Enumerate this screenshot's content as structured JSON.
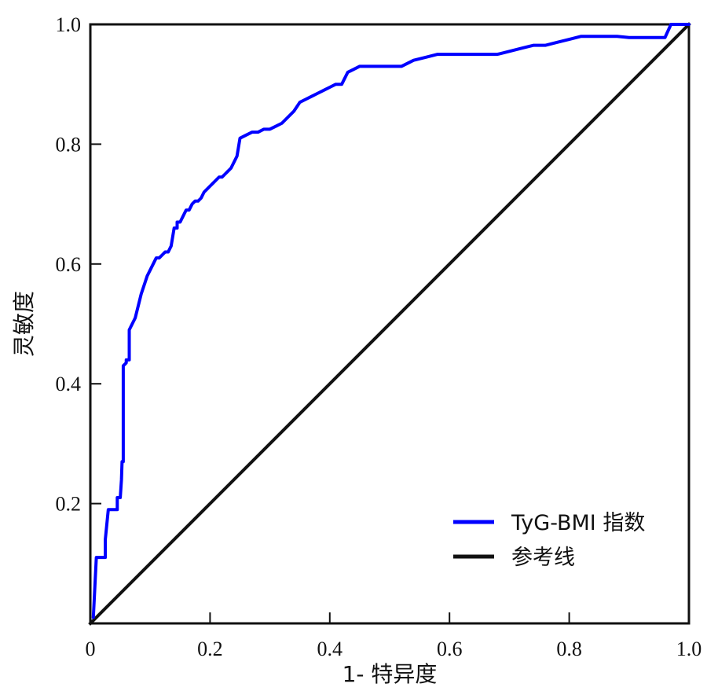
{
  "chart_data": {
    "type": "line",
    "title": "",
    "xlabel": "1- 特异度",
    "ylabel": "灵敏度",
    "xlim": [
      0,
      1
    ],
    "ylim": [
      0,
      1
    ],
    "x_ticks": [
      0,
      0.2,
      0.4,
      0.6,
      0.8,
      1.0
    ],
    "x_tick_labels": [
      "0",
      "0.2",
      "0.4",
      "0.6",
      "0.8",
      "1.0"
    ],
    "y_ticks": [
      0.2,
      0.4,
      0.6,
      0.8,
      1.0
    ],
    "y_tick_labels": [
      "0.2",
      "0.4",
      "0.6",
      "0.8",
      "1.0"
    ],
    "grid": false,
    "legend_position": "bottom-right",
    "series": [
      {
        "name": "TyG-BMI 指数",
        "color": "#0000ff",
        "x": [
          0.005,
          0.01,
          0.015,
          0.02,
          0.025,
          0.025,
          0.03,
          0.03,
          0.035,
          0.035,
          0.045,
          0.045,
          0.05,
          0.052,
          0.053,
          0.055,
          0.055,
          0.06,
          0.06,
          0.065,
          0.065,
          0.07,
          0.07,
          0.075,
          0.08,
          0.085,
          0.09,
          0.095,
          0.1,
          0.105,
          0.11,
          0.115,
          0.12,
          0.125,
          0.13,
          0.135,
          0.14,
          0.145,
          0.145,
          0.15,
          0.15,
          0.155,
          0.16,
          0.165,
          0.17,
          0.175,
          0.18,
          0.185,
          0.19,
          0.195,
          0.2,
          0.205,
          0.21,
          0.215,
          0.22,
          0.225,
          0.23,
          0.235,
          0.24,
          0.245,
          0.25,
          0.26,
          0.27,
          0.28,
          0.29,
          0.3,
          0.31,
          0.32,
          0.33,
          0.34,
          0.35,
          0.36,
          0.37,
          0.38,
          0.39,
          0.4,
          0.41,
          0.42,
          0.43,
          0.44,
          0.45,
          0.46,
          0.47,
          0.48,
          0.5,
          0.52,
          0.54,
          0.56,
          0.58,
          0.6,
          0.62,
          0.64,
          0.66,
          0.68,
          0.7,
          0.72,
          0.74,
          0.76,
          0.78,
          0.8,
          0.82,
          0.84,
          0.86,
          0.88,
          0.9,
          0.92,
          0.94,
          0.96,
          0.97,
          0.98,
          1.0
        ],
        "y": [
          0.01,
          0.11,
          0.11,
          0.11,
          0.11,
          0.14,
          0.19,
          0.19,
          0.19,
          0.19,
          0.19,
          0.21,
          0.21,
          0.24,
          0.27,
          0.27,
          0.43,
          0.435,
          0.44,
          0.44,
          0.49,
          0.5,
          0.5,
          0.51,
          0.53,
          0.55,
          0.565,
          0.58,
          0.59,
          0.6,
          0.61,
          0.61,
          0.615,
          0.62,
          0.62,
          0.63,
          0.66,
          0.66,
          0.67,
          0.67,
          0.67,
          0.68,
          0.69,
          0.69,
          0.7,
          0.705,
          0.705,
          0.71,
          0.72,
          0.725,
          0.73,
          0.735,
          0.74,
          0.745,
          0.745,
          0.75,
          0.755,
          0.76,
          0.77,
          0.78,
          0.81,
          0.815,
          0.82,
          0.82,
          0.825,
          0.825,
          0.83,
          0.835,
          0.845,
          0.855,
          0.87,
          0.875,
          0.88,
          0.885,
          0.89,
          0.895,
          0.9,
          0.9,
          0.92,
          0.925,
          0.93,
          0.93,
          0.93,
          0.93,
          0.93,
          0.93,
          0.94,
          0.945,
          0.95,
          0.95,
          0.95,
          0.95,
          0.95,
          0.95,
          0.955,
          0.96,
          0.965,
          0.965,
          0.97,
          0.975,
          0.98,
          0.98,
          0.98,
          0.98,
          0.978,
          0.978,
          0.978,
          0.978,
          1.0,
          1.0,
          1.0
        ]
      },
      {
        "name": "参考线",
        "color": "#111111",
        "x": [
          0,
          1
        ],
        "y": [
          0,
          1
        ]
      }
    ]
  }
}
